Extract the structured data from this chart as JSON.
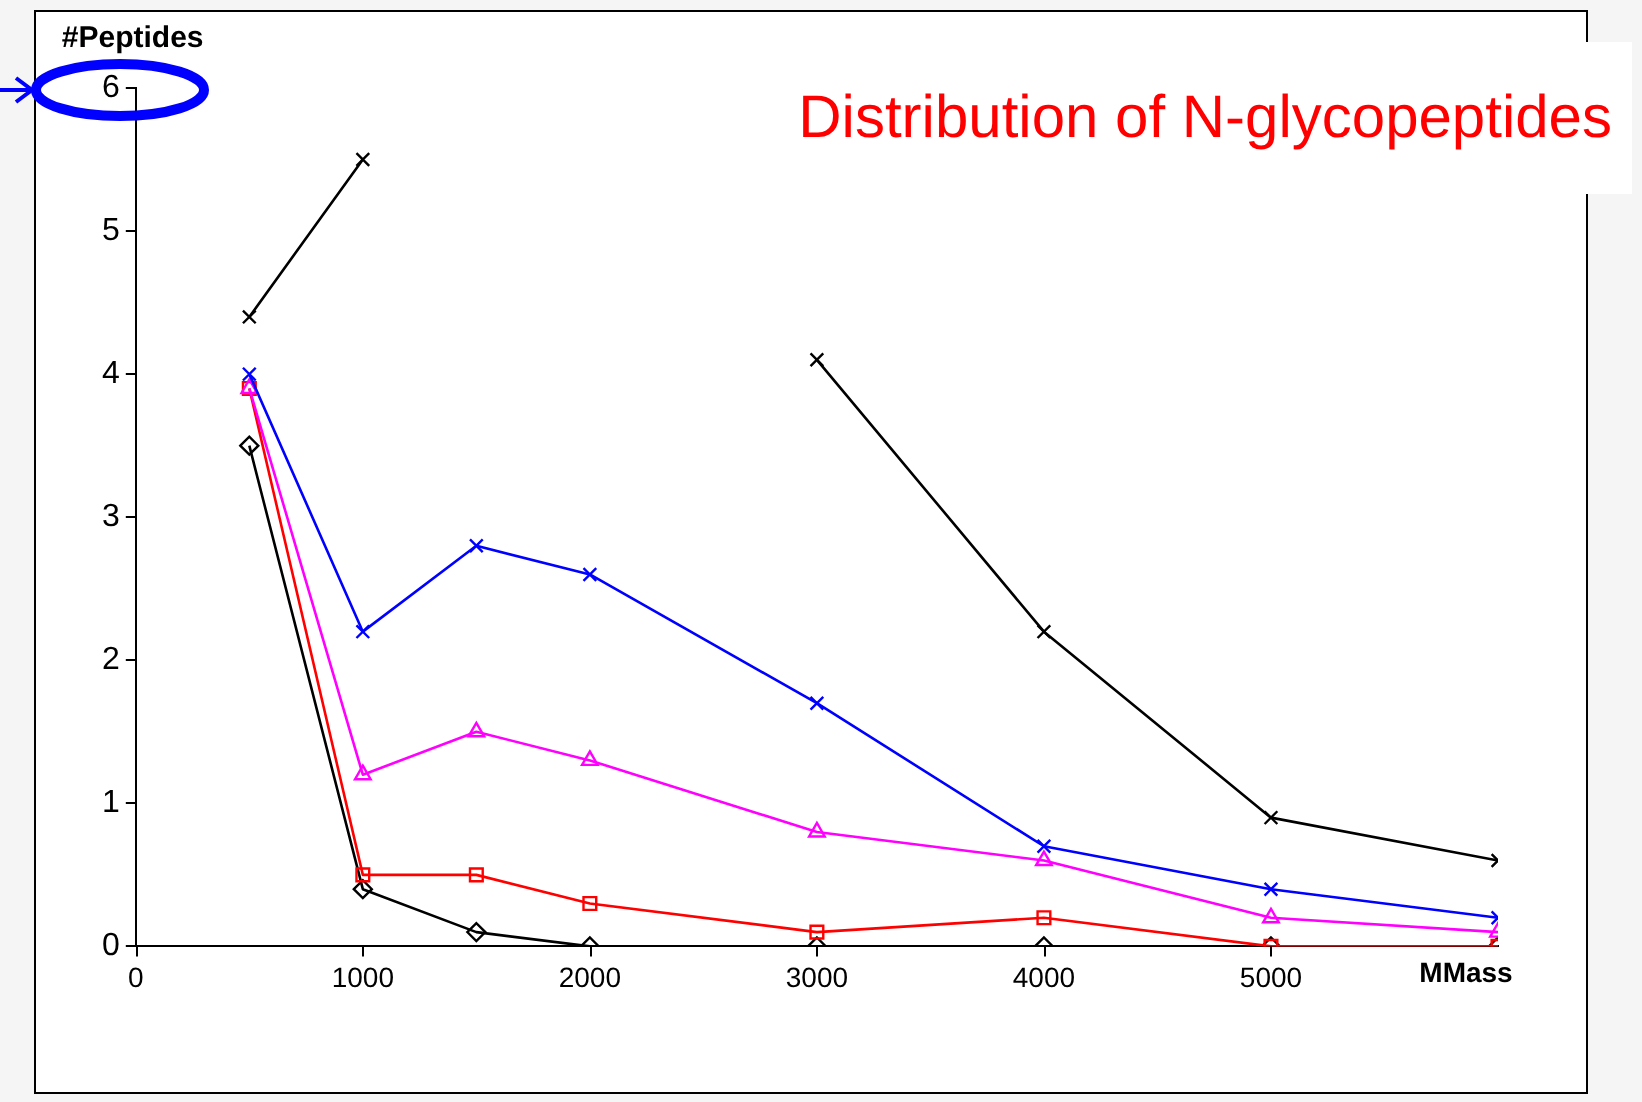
{
  "chart_data": {
    "type": "line",
    "title": "Distribution of N-glycopeptides",
    "xlabel": "MMass",
    "ylabel": "#Peptides",
    "x": [
      500,
      1000,
      1500,
      2000,
      3000,
      4000,
      5000,
      6000
    ],
    "series": [
      {
        "color": "#000000",
        "marker": "cross",
        "values": [
          4.4,
          5.5,
          null,
          null,
          4.1,
          2.2,
          0.9,
          0.6
        ]
      },
      {
        "color": "#0000ff",
        "marker": "cross",
        "values": [
          4.0,
          2.2,
          2.8,
          2.6,
          1.7,
          0.7,
          0.4,
          0.2
        ]
      },
      {
        "color": "#ff00ff",
        "marker": "triangle",
        "values": [
          3.9,
          1.2,
          1.5,
          1.3,
          0.8,
          0.6,
          0.2,
          0.1
        ]
      },
      {
        "color": "#ff0000",
        "marker": "square",
        "values": [
          3.9,
          0.5,
          0.5,
          0.3,
          0.1,
          0.2,
          0,
          0
        ]
      },
      {
        "color": "#000000",
        "marker": "diamond",
        "values": [
          3.5,
          0.4,
          0.1,
          0,
          0,
          0,
          0,
          0
        ]
      }
    ],
    "xlim": [
      0,
      6000
    ],
    "xticks": [
      0,
      1000,
      2000,
      3000,
      4000,
      5000
    ],
    "ylim": [
      0,
      6
    ],
    "yticks": [
      0,
      1,
      2,
      3,
      4,
      5,
      6
    ],
    "grid": false,
    "legend": false,
    "line_style": "solid"
  }
}
